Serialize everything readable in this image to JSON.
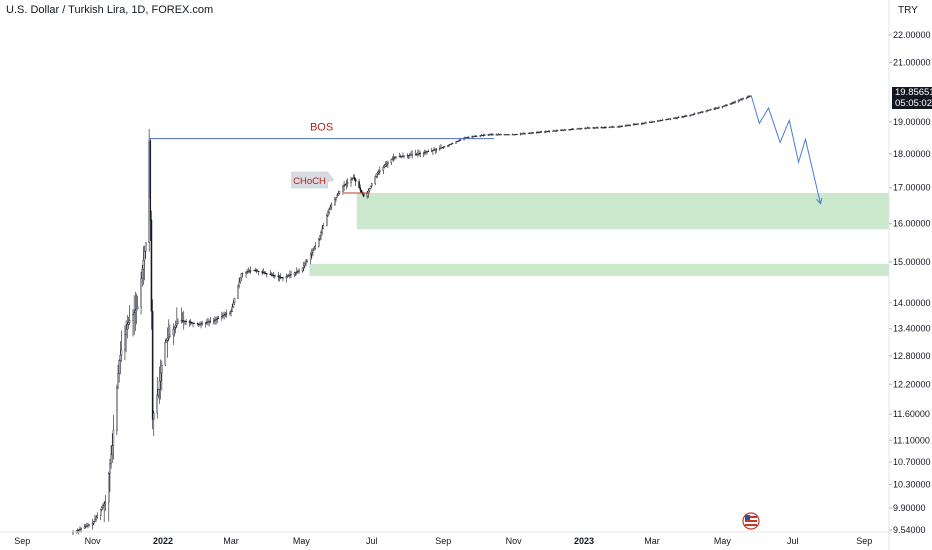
{
  "chart_data": {
    "type": "candlestick",
    "title": "U.S. Dollar / Turkish Lira, 1D, FOREX.com",
    "currency": "TRY",
    "price_scale": "log",
    "ylim": [
      9.3,
      23.2
    ],
    "y_ticks": [
      "22.00000",
      "21.00000",
      "19.00000",
      "18.00000",
      "17.00000",
      "16.00000",
      "15.00000",
      "14.00000",
      "13.40000",
      "12.80000",
      "12.20000",
      "11.60000",
      "11.10000",
      "10.70000",
      "10.30000",
      "9.90000",
      "9.54000"
    ],
    "x_ticks": [
      "Sep",
      "Nov",
      "2022",
      "Mar",
      "May",
      "Jul",
      "Sep",
      "Nov",
      "2023",
      "Mar",
      "May",
      "Jul",
      "Sep"
    ],
    "last_price": {
      "value": "19.85651",
      "countdown": "05:05:02"
    },
    "price_path": [
      [
        "2021-10-15",
        9.5
      ],
      [
        "2021-11-01",
        9.65
      ],
      [
        "2021-11-12",
        10.0
      ],
      [
        "2021-11-18",
        11.0
      ],
      [
        "2021-11-24",
        12.7
      ],
      [
        "2021-12-01",
        13.5
      ],
      [
        "2021-12-10",
        13.9
      ],
      [
        "2021-12-17",
        15.5
      ],
      [
        "2021-12-20",
        18.4
      ],
      [
        "2021-12-23",
        11.5
      ],
      [
        "2021-12-28",
        12.1
      ],
      [
        "2022-01-03",
        13.1
      ],
      [
        "2022-01-15",
        13.6
      ],
      [
        "2022-02-01",
        13.5
      ],
      [
        "2022-02-15",
        13.6
      ],
      [
        "2022-03-01",
        13.8
      ],
      [
        "2022-03-10",
        14.7
      ],
      [
        "2022-03-20",
        14.8
      ],
      [
        "2022-04-01",
        14.7
      ],
      [
        "2022-04-15",
        14.6
      ],
      [
        "2022-05-01",
        14.8
      ],
      [
        "2022-05-15",
        15.5
      ],
      [
        "2022-05-25",
        16.4
      ],
      [
        "2022-06-05",
        17.0
      ],
      [
        "2022-06-15",
        17.3
      ],
      [
        "2022-06-25",
        16.7
      ],
      [
        "2022-07-05",
        17.4
      ],
      [
        "2022-07-20",
        17.9
      ],
      [
        "2022-08-10",
        18.0
      ],
      [
        "2022-09-01",
        18.2
      ],
      [
        "2022-09-20",
        18.5
      ],
      [
        "2022-10-10",
        18.6
      ],
      [
        "2022-11-01",
        18.6
      ],
      [
        "2022-12-01",
        18.7
      ],
      [
        "2023-01-01",
        18.8
      ],
      [
        "2023-02-01",
        18.85
      ],
      [
        "2023-03-01",
        19.0
      ],
      [
        "2023-04-01",
        19.2
      ],
      [
        "2023-05-01",
        19.5
      ],
      [
        "2023-05-15",
        19.7
      ],
      [
        "2023-05-25",
        19.86
      ]
    ],
    "projection": [
      [
        "2023-05-26",
        19.86
      ],
      [
        "2023-06-02",
        18.95
      ],
      [
        "2023-06-10",
        19.45
      ],
      [
        "2023-06-20",
        18.35
      ],
      [
        "2023-06-28",
        19.05
      ],
      [
        "2023-07-06",
        17.75
      ],
      [
        "2023-07-12",
        18.45
      ],
      [
        "2023-07-25",
        16.55
      ]
    ],
    "annotations": [
      {
        "label": "BOS",
        "type": "horizontal-line",
        "y": 18.47,
        "x_start": "2021-12-20",
        "x_end": "2022-10-15"
      },
      {
        "label": "CHoCH",
        "type": "callout",
        "y": 16.85,
        "x": "2022-06-10"
      }
    ],
    "zones": [
      {
        "y_low": 15.85,
        "y_high": 16.85,
        "x_start": "2022-06-18",
        "x_end": "2023-09-30"
      },
      {
        "y_low": 14.65,
        "y_high": 14.95,
        "x_start": "2022-05-08",
        "x_end": "2023-09-30"
      }
    ],
    "colors": {
      "bos_line": "#4a6fc6",
      "projection": "#4a7bdb",
      "zone_fill": "#a9d9ab",
      "choch_text": "#b22222",
      "bos_text": "#b22222",
      "candle": "#131722"
    }
  }
}
